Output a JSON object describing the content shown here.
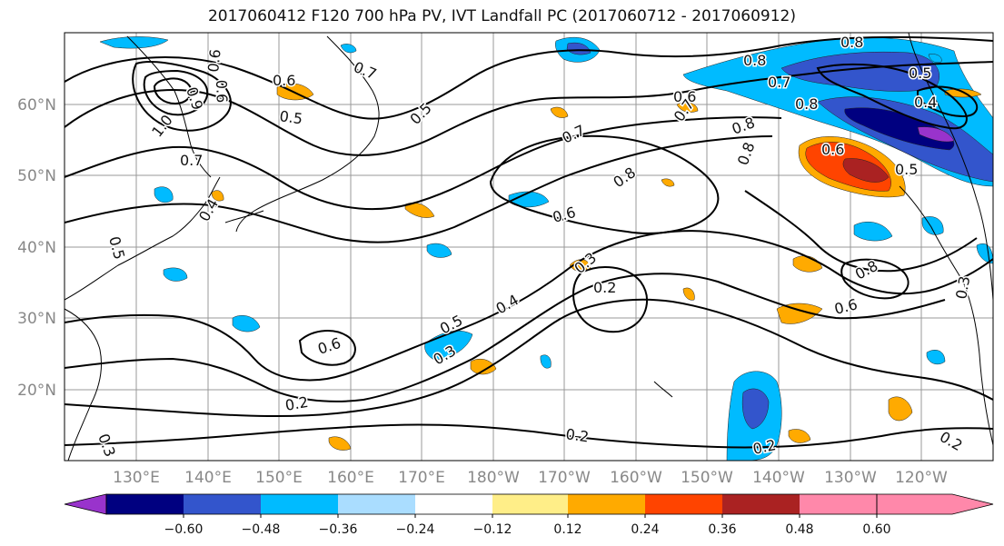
{
  "title": "2017060412 F120 700 hPa PV, IVT Landfall PC (2017060712 - 2017060912)",
  "lat_labels": [
    "60°N",
    "50°N",
    "40°N",
    "30°N",
    "20°N"
  ],
  "lon_labels": [
    "130°E",
    "140°E",
    "150°E",
    "160°E",
    "170°E",
    "180°W",
    "170°W",
    "160°W",
    "150°W",
    "140°W",
    "130°W",
    "120°W"
  ],
  "map_extent": {
    "lon_min": 121,
    "lon_max": 251,
    "lat_min": 10,
    "lat_max": 70
  },
  "colorbar": {
    "colors": [
      "#9933cc",
      "#000080",
      "#3355cc",
      "#00bbff",
      "#aaddff",
      "#ffffff",
      "#ffee88",
      "#ffaa00",
      "#ff4400",
      "#aa2222",
      "#ff88aa"
    ],
    "tick_labels": [
      "−0.60",
      "−0.48",
      "−0.36",
      "−0.24",
      "−0.12",
      "0.12",
      "0.24",
      "0.36",
      "0.48",
      "0.60"
    ]
  },
  "contour_labels": [
    "0.6",
    "0.7",
    "0.8",
    "0.6",
    "0.5",
    "0.4",
    "0.8",
    "0.7",
    "0.6",
    "0.5",
    "0.8",
    "0.6",
    "0.8",
    "0.6",
    "0.9",
    "1.0",
    "0.7",
    "0.5",
    "0.7",
    "0.5",
    "0.7",
    "0.6",
    "0.8",
    "0.8",
    "0.8",
    "0.3",
    "0.2",
    "0.4",
    "0.5",
    "0.3",
    "0.6",
    "0.6",
    "0.2",
    "0.2",
    "0.2",
    "0.2",
    "0.3",
    "0.3",
    "0.5",
    "0.4"
  ]
}
